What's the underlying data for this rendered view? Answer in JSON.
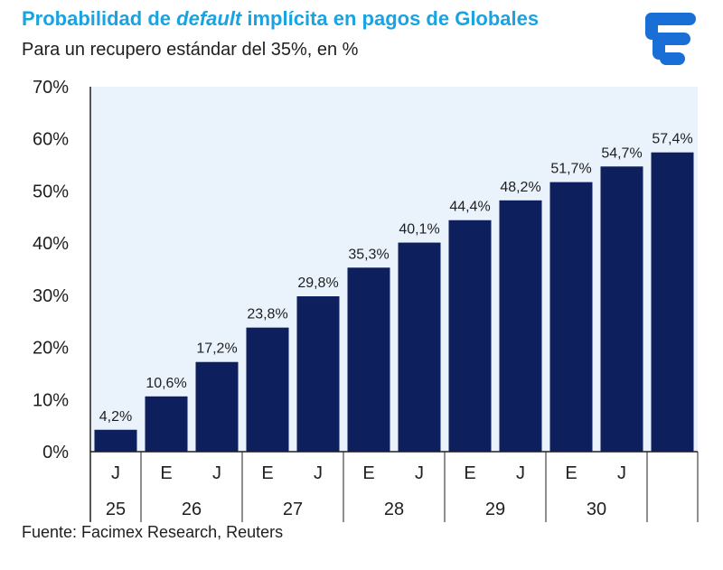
{
  "title": {
    "part1": "Probabilidad de ",
    "part2": "default",
    "part3": " implícita en pagos de Globales"
  },
  "subtitle": "Para un recupero estándar del 35%, en %",
  "source": "Fuente: Facimex Research, Reuters",
  "logo": {
    "icon": "facimex-logo-icon",
    "color": "#1a6fd6"
  },
  "chart_data": {
    "type": "bar",
    "title": "Probabilidad de default implícita en pagos de Globales",
    "subtitle": "Para un recupero estándar del 35%, en %",
    "categories": [
      "J 25",
      "E 26",
      "J 26",
      "E 27",
      "J 27",
      "E 28",
      "J 28",
      "E 29",
      "J 29",
      "E 30",
      "J 30",
      ""
    ],
    "x_level1": [
      "J",
      "E",
      "J",
      "E",
      "J",
      "E",
      "J",
      "E",
      "J",
      "E",
      "J",
      ""
    ],
    "x_level2": [
      {
        "label": "25",
        "span": 1
      },
      {
        "label": "26",
        "span": 2
      },
      {
        "label": "27",
        "span": 2
      },
      {
        "label": "28",
        "span": 2
      },
      {
        "label": "29",
        "span": 2
      },
      {
        "label": "30",
        "span": 2
      },
      {
        "label": "",
        "span": 1
      }
    ],
    "values": [
      4.2,
      10.6,
      17.2,
      23.8,
      29.8,
      35.3,
      40.1,
      44.4,
      48.2,
      51.7,
      54.7,
      57.4
    ],
    "data_labels": [
      "4,2%",
      "10,6%",
      "17,2%",
      "23,8%",
      "29,8%",
      "35,3%",
      "40,1%",
      "44,4%",
      "48,2%",
      "51,7%",
      "54,7%",
      "57,4%"
    ],
    "yticks": [
      "0%",
      "10%",
      "20%",
      "30%",
      "40%",
      "50%",
      "60%",
      "70%"
    ],
    "ylim": [
      0,
      70
    ],
    "xlabel": "",
    "ylabel": "",
    "grid": false,
    "colors": {
      "bar": "#0d1f5c",
      "plot_bg": "#eaf2fb",
      "axis": "#1f1f1f"
    }
  }
}
